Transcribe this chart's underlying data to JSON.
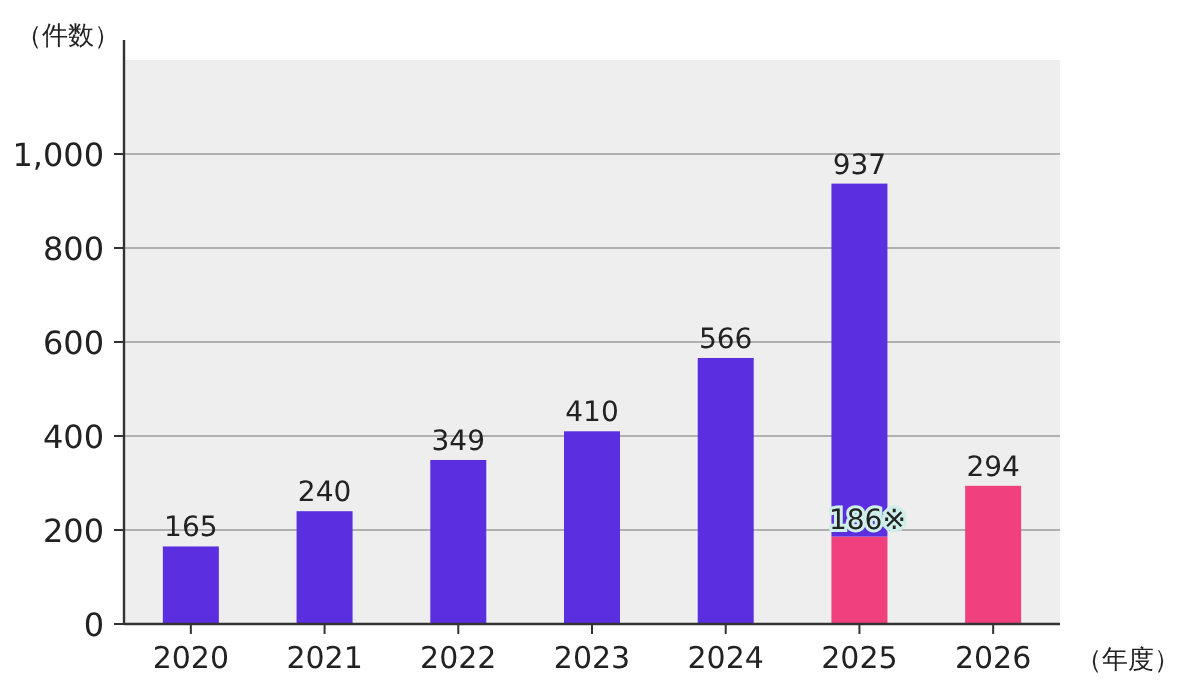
{
  "chart_data": {
    "type": "bar",
    "stacked": true,
    "ylabel": "（件数）",
    "xlabel": "（年度）",
    "categories": [
      "2020",
      "2021",
      "2022",
      "2023",
      "2024",
      "2025",
      "2026"
    ],
    "series": [
      {
        "color": "#f0407e",
        "values": [
          null,
          null,
          null,
          null,
          null,
          186,
          294
        ],
        "value_labels": [
          null,
          null,
          null,
          null,
          null,
          "186※",
          null
        ]
      },
      {
        "color": "#5b2fe0",
        "values": [
          165,
          240,
          349,
          410,
          566,
          751,
          null
        ]
      }
    ],
    "totals": [
      "165",
      "240",
      "349",
      "410",
      "566",
      "937",
      "294"
    ],
    "ylim": [
      0,
      1200
    ],
    "yticks": [
      0,
      200,
      400,
      600,
      800,
      {
        "value": 1000,
        "label": "1,000"
      }
    ],
    "grid": "y"
  }
}
